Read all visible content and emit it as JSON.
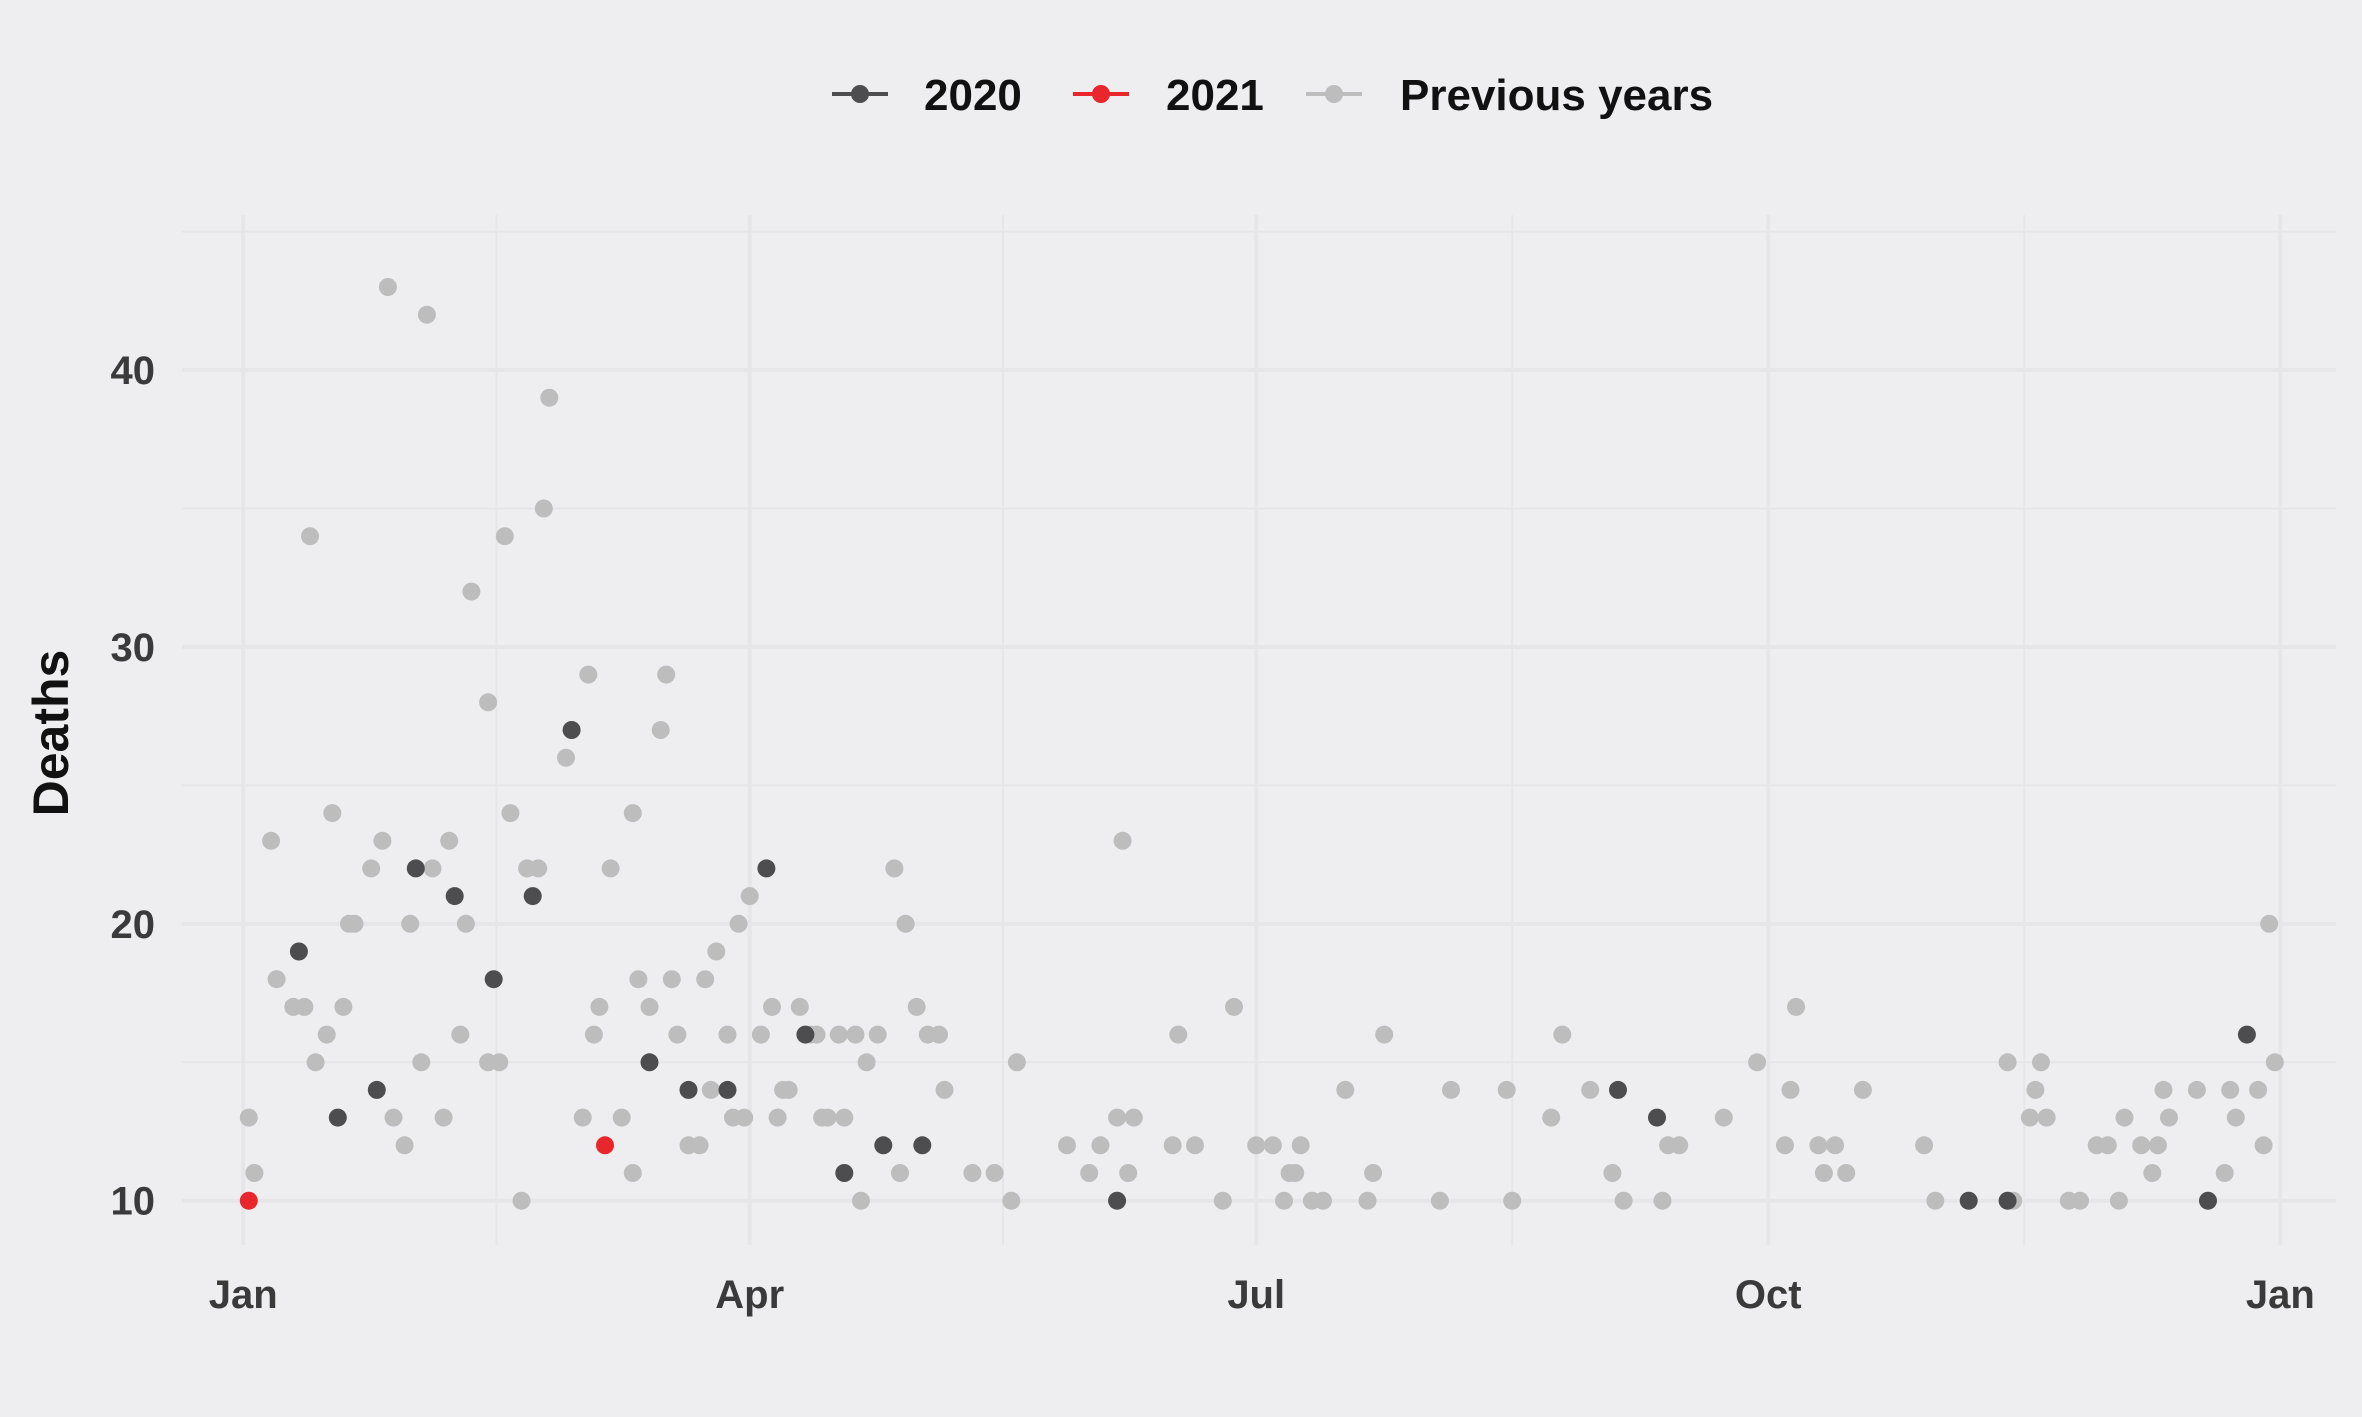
{
  "chart_data": {
    "type": "scatter",
    "title": "",
    "xlabel": "",
    "ylabel": "Deaths",
    "x_unit": "day_of_year",
    "xlim": [
      -11,
      376
    ],
    "ylim": [
      8.4,
      45.6
    ],
    "x_ticks": [
      {
        "label": "Jan",
        "value": 0
      },
      {
        "label": "Apr",
        "value": 91
      },
      {
        "label": "Jul",
        "value": 182
      },
      {
        "label": "Oct",
        "value": 274
      },
      {
        "label": "Jan",
        "value": 366
      }
    ],
    "y_ticks": [
      10,
      20,
      30,
      40
    ],
    "grid": true,
    "legend_position": "top-center",
    "legend": [
      "2020",
      "2021",
      "Previous years"
    ],
    "colors": {
      "2020": "#4d4d4f",
      "2021": "#e8262b",
      "Previous years": "#bdbdbd",
      "grid": "#e6e6e8",
      "background": "#eeeef0"
    },
    "series": [
      {
        "name": "Previous years",
        "points": [
          [
            1,
            13
          ],
          [
            2,
            11
          ],
          [
            5,
            23
          ],
          [
            6,
            18
          ],
          [
            9,
            17
          ],
          [
            11,
            17
          ],
          [
            12,
            34
          ],
          [
            13,
            15
          ],
          [
            15,
            16
          ],
          [
            16,
            24
          ],
          [
            18,
            17
          ],
          [
            19,
            20
          ],
          [
            20,
            20
          ],
          [
            23,
            22
          ],
          [
            25,
            23
          ],
          [
            26,
            43
          ],
          [
            27,
            13
          ],
          [
            29,
            12
          ],
          [
            30,
            20
          ],
          [
            32,
            15
          ],
          [
            33,
            42
          ],
          [
            34,
            22
          ],
          [
            36,
            13
          ],
          [
            37,
            23
          ],
          [
            39,
            16
          ],
          [
            40,
            20
          ],
          [
            41,
            32
          ],
          [
            44,
            15
          ],
          [
            44,
            28
          ],
          [
            46,
            15
          ],
          [
            47,
            34
          ],
          [
            48,
            24
          ],
          [
            50,
            10
          ],
          [
            51,
            22
          ],
          [
            53,
            22
          ],
          [
            54,
            35
          ],
          [
            55,
            39
          ],
          [
            58,
            26
          ],
          [
            61,
            13
          ],
          [
            62,
            29
          ],
          [
            63,
            16
          ],
          [
            64,
            17
          ],
          [
            66,
            22
          ],
          [
            68,
            13
          ],
          [
            70,
            24
          ],
          [
            70,
            11
          ],
          [
            71,
            18
          ],
          [
            73,
            17
          ],
          [
            75,
            27
          ],
          [
            76,
            29
          ],
          [
            77,
            18
          ],
          [
            78,
            16
          ],
          [
            80,
            12
          ],
          [
            82,
            12
          ],
          [
            83,
            18
          ],
          [
            84,
            14
          ],
          [
            85,
            19
          ],
          [
            87,
            16
          ],
          [
            88,
            13
          ],
          [
            89,
            20
          ],
          [
            90,
            13
          ],
          [
            91,
            21
          ],
          [
            93,
            16
          ],
          [
            95,
            17
          ],
          [
            96,
            13
          ],
          [
            97,
            14
          ],
          [
            98,
            14
          ],
          [
            100,
            17
          ],
          [
            102,
            16
          ],
          [
            103,
            16
          ],
          [
            104,
            13
          ],
          [
            105,
            13
          ],
          [
            107,
            16
          ],
          [
            108,
            13
          ],
          [
            110,
            16
          ],
          [
            111,
            10
          ],
          [
            112,
            15
          ],
          [
            114,
            16
          ],
          [
            117,
            22
          ],
          [
            118,
            11
          ],
          [
            119,
            20
          ],
          [
            121,
            17
          ],
          [
            123,
            16
          ],
          [
            125,
            16
          ],
          [
            126,
            14
          ],
          [
            131,
            11
          ],
          [
            135,
            11
          ],
          [
            138,
            10
          ],
          [
            139,
            15
          ],
          [
            148,
            12
          ],
          [
            152,
            11
          ],
          [
            154,
            12
          ],
          [
            157,
            13
          ],
          [
            158,
            23
          ],
          [
            159,
            11
          ],
          [
            160,
            13
          ],
          [
            167,
            12
          ],
          [
            168,
            16
          ],
          [
            171,
            12
          ],
          [
            176,
            10
          ],
          [
            178,
            17
          ],
          [
            182,
            12
          ],
          [
            185,
            12
          ],
          [
            187,
            10
          ],
          [
            188,
            11
          ],
          [
            189,
            11
          ],
          [
            190,
            12
          ],
          [
            192,
            10
          ],
          [
            194,
            10
          ],
          [
            198,
            14
          ],
          [
            202,
            10
          ],
          [
            203,
            11
          ],
          [
            205,
            16
          ],
          [
            215,
            10
          ],
          [
            217,
            14
          ],
          [
            227,
            14
          ],
          [
            228,
            10
          ],
          [
            235,
            13
          ],
          [
            237,
            16
          ],
          [
            242,
            14
          ],
          [
            246,
            11
          ],
          [
            248,
            10
          ],
          [
            255,
            10
          ],
          [
            256,
            12
          ],
          [
            258,
            12
          ],
          [
            266,
            13
          ],
          [
            272,
            15
          ],
          [
            277,
            12
          ],
          [
            278,
            14
          ],
          [
            279,
            17
          ],
          [
            283,
            12
          ],
          [
            284,
            11
          ],
          [
            286,
            12
          ],
          [
            288,
            11
          ],
          [
            291,
            14
          ],
          [
            302,
            12
          ],
          [
            304,
            10
          ],
          [
            317,
            15
          ],
          [
            318,
            10
          ],
          [
            321,
            13
          ],
          [
            322,
            14
          ],
          [
            323,
            15
          ],
          [
            324,
            13
          ],
          [
            328,
            10
          ],
          [
            330,
            10
          ],
          [
            333,
            12
          ],
          [
            335,
            12
          ],
          [
            337,
            10
          ],
          [
            338,
            13
          ],
          [
            341,
            12
          ],
          [
            343,
            11
          ],
          [
            344,
            12
          ],
          [
            345,
            14
          ],
          [
            346,
            13
          ],
          [
            351,
            14
          ],
          [
            356,
            11
          ],
          [
            357,
            14
          ],
          [
            358,
            13
          ],
          [
            362,
            14
          ],
          [
            363,
            12
          ],
          [
            364,
            20
          ],
          [
            365,
            15
          ]
        ]
      },
      {
        "name": "2020",
        "points": [
          [
            10,
            19
          ],
          [
            17,
            13
          ],
          [
            24,
            14
          ],
          [
            31,
            22
          ],
          [
            38,
            21
          ],
          [
            45,
            18
          ],
          [
            52,
            21
          ],
          [
            59,
            27
          ],
          [
            73,
            15
          ],
          [
            80,
            14
          ],
          [
            87,
            14
          ],
          [
            94,
            22
          ],
          [
            101,
            16
          ],
          [
            108,
            11
          ],
          [
            115,
            12
          ],
          [
            122,
            12
          ],
          [
            157,
            10
          ],
          [
            247,
            14
          ],
          [
            254,
            13
          ],
          [
            310,
            10
          ],
          [
            317,
            10
          ],
          [
            353,
            10
          ],
          [
            360,
            16
          ]
        ]
      },
      {
        "name": "2021",
        "points": [
          [
            1,
            10
          ],
          [
            65,
            12
          ]
        ]
      }
    ]
  }
}
